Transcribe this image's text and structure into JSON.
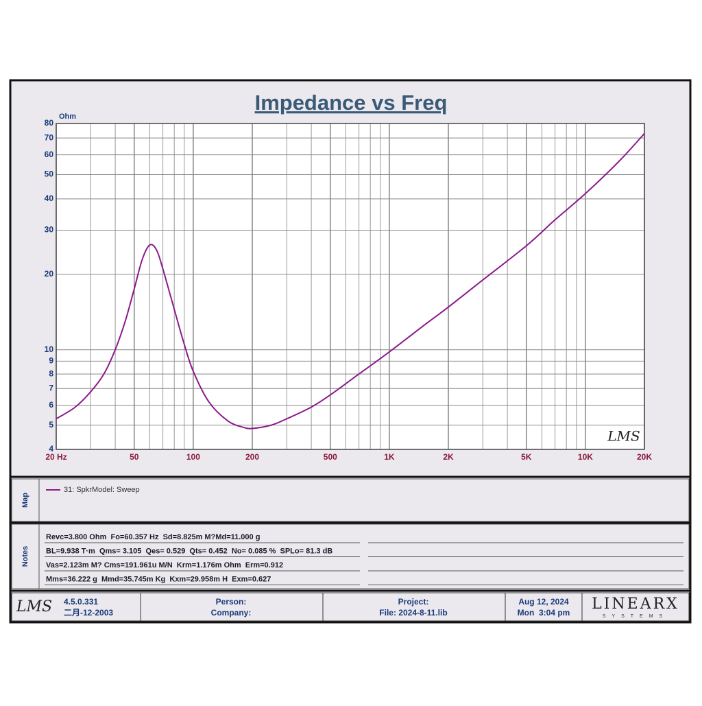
{
  "chart_data": {
    "type": "line",
    "title": "Impedance vs Freq",
    "y_label": "Ohm",
    "x_scale": "log",
    "y_scale": "log",
    "grid": true,
    "x": [
      20,
      25,
      30,
      35,
      40,
      45,
      50,
      55,
      60,
      65,
      70,
      80,
      90,
      100,
      120,
      150,
      180,
      200,
      250,
      300,
      400,
      500,
      700,
      1000,
      1500,
      2000,
      3000,
      5000,
      7000,
      10000,
      15000,
      20000
    ],
    "series": [
      {
        "name": "31: SpkrModel: Sweep",
        "color": "#8b1a8b",
        "values": [
          5.3,
          5.9,
          6.8,
          8.0,
          10.0,
          13,
          17.5,
          23,
          26.2,
          25,
          21,
          14.5,
          10.5,
          8.2,
          6.2,
          5.2,
          4.9,
          4.85,
          5.0,
          5.3,
          5.9,
          6.6,
          8.0,
          9.8,
          12.5,
          14.8,
          19,
          26,
          33,
          42,
          57,
          73
        ]
      }
    ],
    "xlim": [
      20,
      20000
    ],
    "ylim": [
      4,
      80
    ],
    "xticks": [
      {
        "value": 20,
        "label": "20 Hz"
      },
      50,
      100,
      200,
      500,
      {
        "value": 1000,
        "label": "1K"
      },
      {
        "value": 2000,
        "label": "2K"
      },
      {
        "value": 5000,
        "label": "5K"
      },
      {
        "value": 10000,
        "label": "10K"
      },
      {
        "value": 20000,
        "label": "20K"
      }
    ],
    "xminorticks": [
      30,
      40,
      60,
      70,
      80,
      90,
      300,
      400,
      600,
      700,
      800,
      900,
      3000,
      4000,
      6000,
      7000,
      8000,
      9000
    ],
    "yticks": [
      4,
      5,
      6,
      7,
      8,
      9,
      10,
      20,
      30,
      40,
      50,
      60,
      70,
      80
    ]
  },
  "plot_logo": "LMS",
  "map_label": "Map",
  "notes_label": "Notes",
  "notes": [
    "Revc=3.800 Ohm  Fo=60.357 Hz  Sd=8.825m M?Md=11.000 g",
    "BL=9.938 T·m  Qms= 3.105  Qes= 0.529  Qts= 0.452  No= 0.085 %  SPLo= 81.3 dB",
    "Vas=2.123m M? Cms=191.961u M/N  Krm=1.176m Ohm  Erm=0.912",
    "Mms=36.222 g  Mmd=35.745m Kg  Kxm=29.958m H  Exm=0.627"
  ],
  "footer": {
    "logo": "LMS",
    "version": "4.5.0.331",
    "build_date": "二月-12-2003",
    "person": "Person:",
    "company": "Company:",
    "project": "Project:",
    "file": "File: 2024-8-11.lib",
    "date": "Aug 12, 2024",
    "time": "Mon  3:04 pm",
    "brand": "LINEARX",
    "brand_sub": "SYSTEMS"
  }
}
